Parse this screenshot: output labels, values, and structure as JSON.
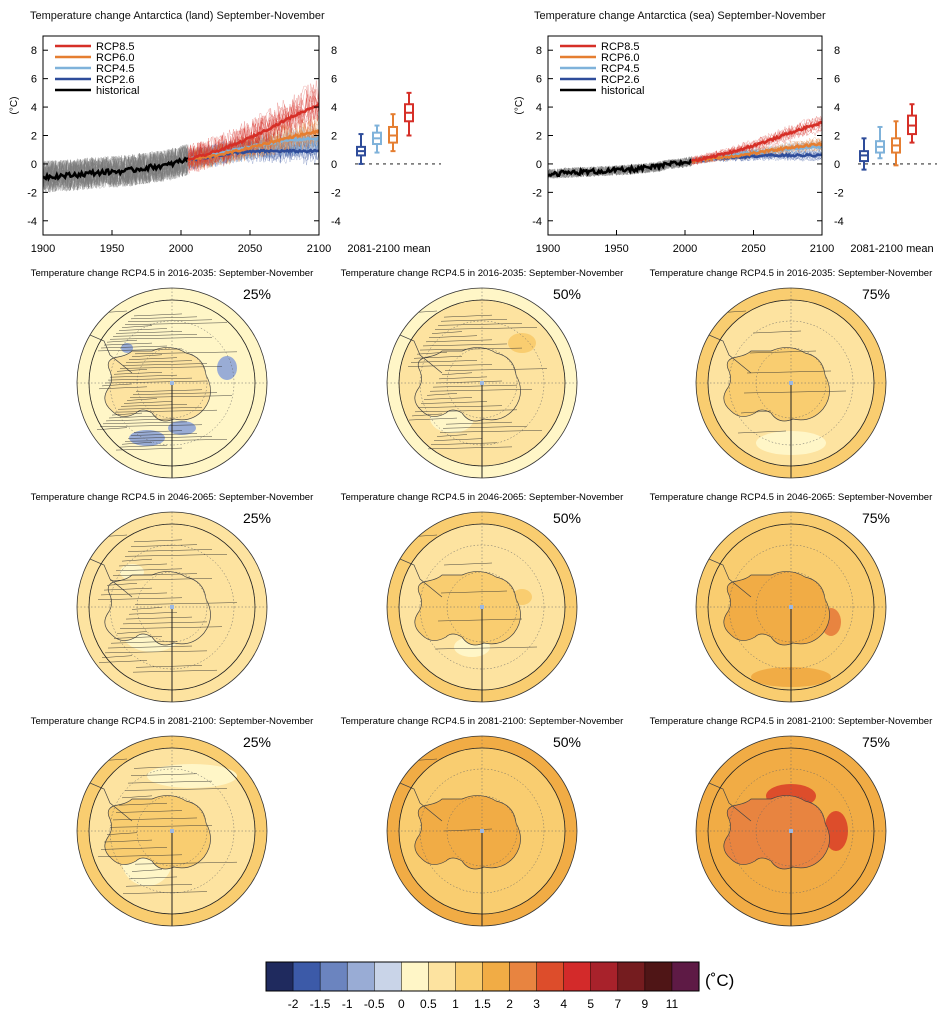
{
  "timeseries": [
    {
      "title": "Temperature change Antarctica (land) September-November",
      "ylabel": "(°C)",
      "side_label": "2081-2100 mean",
      "x_ticks": [
        1900,
        1950,
        2000,
        2050,
        2100
      ],
      "y_ticks": [
        -4,
        -2,
        0,
        2,
        4,
        6,
        8
      ],
      "xlim": [
        1900,
        2100
      ],
      "ylim": [
        -5,
        9
      ]
    },
    {
      "title": "Temperature change Antarctica (sea) September-November",
      "ylabel": "(°C)",
      "side_label": "2081-2100 mean",
      "x_ticks": [
        1900,
        1950,
        2000,
        2050,
        2100
      ],
      "y_ticks": [
        -4,
        -2,
        0,
        2,
        4,
        6,
        8
      ],
      "xlim": [
        1900,
        2100
      ],
      "ylim": [
        -5,
        9
      ]
    }
  ],
  "legend": [
    {
      "name": "RCP8.5",
      "color": "#d62f27"
    },
    {
      "name": "RCP6.0",
      "color": "#e57e31"
    },
    {
      "name": "RCP4.5",
      "color": "#7fb2da"
    },
    {
      "name": "RCP2.6",
      "color": "#2e4c9a"
    },
    {
      "name": "historical",
      "color": "#000000"
    }
  ],
  "maps": {
    "rows": [
      {
        "title": "Temperature change RCP4.5 in 2016-2035: September-November"
      },
      {
        "title": "Temperature change RCP4.5 in 2046-2065: September-November"
      },
      {
        "title": "Temperature change RCP4.5 in 2081-2100: September-November"
      }
    ],
    "percentiles": [
      "25%",
      "50%",
      "75%"
    ]
  },
  "colorbar": {
    "unit": "(˚C)",
    "labels": [
      "-2",
      "-1.5",
      "-1",
      "-0.5",
      "0",
      "0.5",
      "1",
      "1.5",
      "2",
      "3",
      "4",
      "5",
      "7",
      "9",
      "11"
    ],
    "colors": [
      "#1f2a5e",
      "#3c5aa8",
      "#6b84bf",
      "#99acd5",
      "#c9d4e8",
      "#fff6c7",
      "#fde3a0",
      "#f9cd70",
      "#f1ac45",
      "#e88440",
      "#dd4d2b",
      "#d32a2a",
      "#a8222b",
      "#751c1f",
      "#4f1516",
      "#5e1a45"
    ]
  },
  "chart_data": [
    {
      "type": "line",
      "title": "Temperature change Antarctica (land) September-November",
      "xlabel": "",
      "ylabel": "(°C)",
      "xlim": [
        1900,
        2100
      ],
      "ylim": [
        -5,
        9
      ],
      "series": [
        {
          "name": "historical",
          "x": [
            1900,
            1920,
            1940,
            1960,
            1980,
            1990,
            2000,
            2005
          ],
          "values": [
            -0.9,
            -0.8,
            -0.6,
            -0.5,
            -0.2,
            -0.1,
            0.2,
            0.3
          ]
        },
        {
          "name": "RCP2.6",
          "x": [
            2005,
            2020,
            2040,
            2060,
            2080,
            2100
          ],
          "values": [
            0.3,
            0.5,
            0.8,
            0.9,
            0.9,
            0.9
          ]
        },
        {
          "name": "RCP4.5",
          "x": [
            2005,
            2020,
            2040,
            2060,
            2080,
            2100
          ],
          "values": [
            0.3,
            0.6,
            1.0,
            1.4,
            1.7,
            1.8
          ]
        },
        {
          "name": "RCP6.0",
          "x": [
            2005,
            2020,
            2040,
            2060,
            2080,
            2100
          ],
          "values": [
            0.3,
            0.5,
            0.9,
            1.4,
            1.9,
            2.3
          ]
        },
        {
          "name": "RCP8.5",
          "x": [
            2005,
            2020,
            2040,
            2060,
            2080,
            2100
          ],
          "values": [
            0.3,
            0.7,
            1.4,
            2.3,
            3.3,
            4.2
          ]
        }
      ],
      "boxplots": {
        "label": "2081-2100 mean",
        "items": [
          {
            "name": "RCP2.6",
            "min": 0.0,
            "q1": 0.6,
            "median": 0.9,
            "q3": 1.2,
            "max": 2.1
          },
          {
            "name": "RCP4.5",
            "min": 0.8,
            "q1": 1.4,
            "median": 1.8,
            "q3": 2.2,
            "max": 2.7
          },
          {
            "name": "RCP6.0",
            "min": 0.9,
            "q1": 1.5,
            "median": 2.0,
            "q3": 2.6,
            "max": 3.5
          },
          {
            "name": "RCP8.5",
            "min": 2.0,
            "q1": 3.0,
            "median": 3.6,
            "q3": 4.2,
            "max": 5.0
          }
        ]
      }
    },
    {
      "type": "line",
      "title": "Temperature change Antarctica (sea) September-November",
      "xlabel": "",
      "ylabel": "(°C)",
      "xlim": [
        1900,
        2100
      ],
      "ylim": [
        -5,
        9
      ],
      "series": [
        {
          "name": "historical",
          "x": [
            1900,
            1920,
            1940,
            1960,
            1980,
            1990,
            2000,
            2005
          ],
          "values": [
            -0.7,
            -0.6,
            -0.5,
            -0.4,
            -0.2,
            0.0,
            0.1,
            0.2
          ]
        },
        {
          "name": "RCP2.6",
          "x": [
            2005,
            2020,
            2040,
            2060,
            2080,
            2100
          ],
          "values": [
            0.2,
            0.4,
            0.5,
            0.6,
            0.6,
            0.6
          ]
        },
        {
          "name": "RCP4.5",
          "x": [
            2005,
            2020,
            2040,
            2060,
            2080,
            2100
          ],
          "values": [
            0.2,
            0.4,
            0.7,
            0.9,
            1.1,
            1.2
          ]
        },
        {
          "name": "RCP6.0",
          "x": [
            2005,
            2020,
            2040,
            2060,
            2080,
            2100
          ],
          "values": [
            0.2,
            0.4,
            0.6,
            0.9,
            1.2,
            1.4
          ]
        },
        {
          "name": "RCP8.5",
          "x": [
            2005,
            2020,
            2040,
            2060,
            2080,
            2100
          ],
          "values": [
            0.2,
            0.5,
            1.0,
            1.6,
            2.3,
            2.9
          ]
        }
      ],
      "boxplots": {
        "label": "2081-2100 mean",
        "items": [
          {
            "name": "RCP2.6",
            "min": -0.4,
            "q1": 0.2,
            "median": 0.6,
            "q3": 0.9,
            "max": 1.8
          },
          {
            "name": "RCP4.5",
            "min": 0.4,
            "q1": 0.8,
            "median": 1.2,
            "q3": 1.6,
            "max": 2.6
          },
          {
            "name": "RCP6.0",
            "min": -0.1,
            "q1": 0.8,
            "median": 1.3,
            "q3": 1.8,
            "max": 3.0
          },
          {
            "name": "RCP8.5",
            "min": 1.5,
            "q1": 2.1,
            "median": 2.7,
            "q3": 3.4,
            "max": 4.2
          }
        ]
      }
    }
  ]
}
